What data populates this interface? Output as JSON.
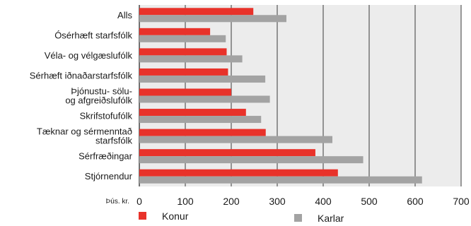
{
  "chart_data": {
    "type": "bar",
    "orientation": "horizontal",
    "categories": [
      "Alls",
      "Ósérhæft starfsfólk",
      "Véla- og vélgæslufólk",
      "Sérhæft iðnaðarstarfsfólk",
      "Þjónustu- sölu- og afgreiðslufólk",
      "Skrifstofufólk",
      "Tæknar og sérmenntað starfsfólk",
      "Sérfræðingar",
      "Stjórnendur"
    ],
    "category_lines": [
      [
        "Alls"
      ],
      [
        "Ósérhæft starfsfólk"
      ],
      [
        "Véla- og vélgæslufólk"
      ],
      [
        "Sérhæft iðnaðarstarfsfólk"
      ],
      [
        "Þjónustu- sölu-",
        "og afgreiðslufólk"
      ],
      [
        "Skrifstofufólk"
      ],
      [
        "Tæknar og sérmenntað",
        "starfsfólk"
      ],
      [
        "Sérfræðingar"
      ],
      [
        "Stjórnendur"
      ]
    ],
    "series": [
      {
        "name": "Konur",
        "color": "#e8322a",
        "values": [
          248,
          154,
          190,
          193,
          200,
          232,
          275,
          383,
          432
        ]
      },
      {
        "name": "Karlar",
        "color": "#a3a3a3",
        "values": [
          320,
          188,
          224,
          274,
          284,
          265,
          420,
          487,
          615
        ]
      }
    ],
    "xlim": [
      0,
      700
    ],
    "xticks": [
      0,
      100,
      200,
      300,
      400,
      500,
      600,
      700
    ],
    "xunit_label": "Þús. kr.",
    "grid": "vertical",
    "legend_position": "bottom"
  }
}
